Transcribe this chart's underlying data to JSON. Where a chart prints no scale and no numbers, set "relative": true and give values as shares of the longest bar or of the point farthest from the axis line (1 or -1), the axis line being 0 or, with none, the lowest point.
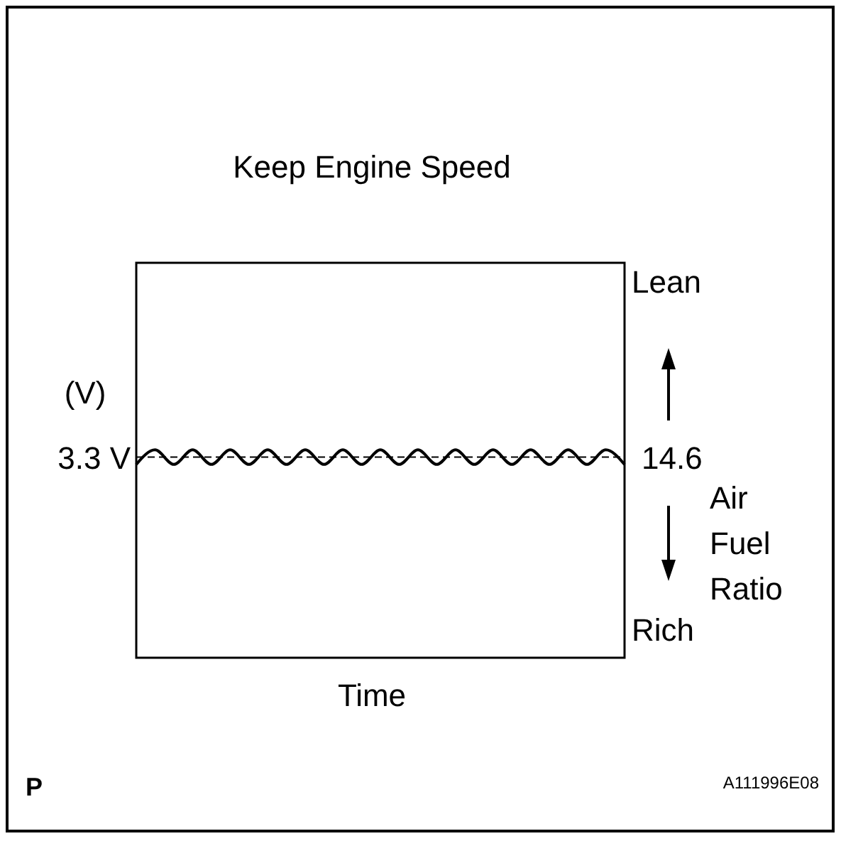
{
  "chart_data": {
    "type": "line",
    "title": "Keep Engine Speed",
    "xlabel": "Time",
    "ylabel": "(V)",
    "y2label": "Air Fuel Ratio",
    "relative": true,
    "categories": [
      null,
      null,
      null,
      null,
      null,
      null,
      null,
      null,
      null,
      null,
      null,
      null,
      null,
      null,
      null,
      null,
      null,
      null,
      null,
      null,
      null,
      null,
      null,
      null,
      null,
      null,
      null
    ],
    "series": [
      {
        "color": "#000000",
        "values": [
          0.93,
          1,
          0.93,
          1,
          0.93,
          1,
          0.93,
          1,
          0.93,
          1,
          0.93,
          1,
          0.93,
          1,
          0.93,
          1,
          0.93,
          1,
          0.93,
          1,
          0.93,
          1,
          0.93,
          1,
          0.93,
          1,
          0.93
        ]
      }
    ],
    "ref_lines": [
      {
        "axis": "y",
        "value": 0.965,
        "label": "3.3 V",
        "color": "#000000",
        "line_style": "dashed"
      }
    ],
    "annotations": [
      "Lean",
      "Rich",
      "14.6",
      "P",
      "A111996E08"
    ],
    "marker": "none",
    "line_style": "solid"
  }
}
